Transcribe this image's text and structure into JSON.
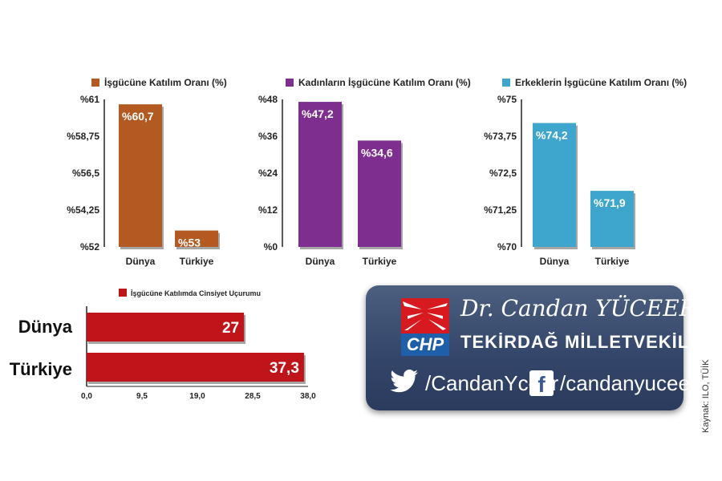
{
  "chart_data": [
    {
      "type": "bar",
      "legend": "İşgücüne Katılım Oranı (%)",
      "categories": [
        "Dünya",
        "Türkiye"
      ],
      "values": [
        60.7,
        53
      ],
      "data_labels": [
        "%60,7",
        "%53"
      ],
      "ylim": [
        52,
        61
      ],
      "y_ticks": [
        "%61",
        "%58,75",
        "%56,5",
        "%54,25",
        "%52"
      ],
      "color": "#b35a22"
    },
    {
      "type": "bar",
      "legend": "Kadınların İşgücüne Katılım Oranı (%)",
      "categories": [
        "Dünya",
        "Türkiye"
      ],
      "values": [
        47.2,
        34.6
      ],
      "data_labels": [
        "%47,2",
        "%34,6"
      ],
      "ylim": [
        0,
        48
      ],
      "y_ticks": [
        "%48",
        "%36",
        "%24",
        "%12",
        "%0"
      ],
      "color": "#7d2e8e"
    },
    {
      "type": "bar",
      "legend": "Erkeklerin İşgücüne Katılım Oranı (%)",
      "categories": [
        "Dünya",
        "Türkiye"
      ],
      "values": [
        74.2,
        71.9
      ],
      "data_labels": [
        "%74,2",
        "%71,9"
      ],
      "ylim": [
        70,
        75
      ],
      "y_ticks": [
        "%75",
        "%73,75",
        "%72,5",
        "%71,25",
        "%70"
      ],
      "color": "#3ea6cc"
    },
    {
      "type": "bar",
      "orientation": "horizontal",
      "legend": "İşgücüne Katılımda Cinsiyet Uçurumu",
      "categories": [
        "Dünya",
        "Türkiye"
      ],
      "values": [
        27,
        37.3
      ],
      "data_labels": [
        "27",
        "37,3"
      ],
      "xlim": [
        0,
        38
      ],
      "x_ticks": [
        "0,0",
        "9,5",
        "19,0",
        "28,5",
        "38,0"
      ],
      "color": "#c0141b"
    }
  ],
  "card": {
    "name": "Dr. Candan YÜCEER",
    "title": "TEKİRDAĞ MİLLETVEKİLİ",
    "logo_text": "CHP",
    "twitter": "/CandanYceer",
    "facebook": "/candanyuceer",
    "twitter_icon": "twitter-bird-icon",
    "facebook_icon": "facebook-f-icon",
    "brand_red": "#d71920",
    "brand_blue": "#1f5ea8"
  },
  "source": "Kaynak: ILO, TÜİK"
}
